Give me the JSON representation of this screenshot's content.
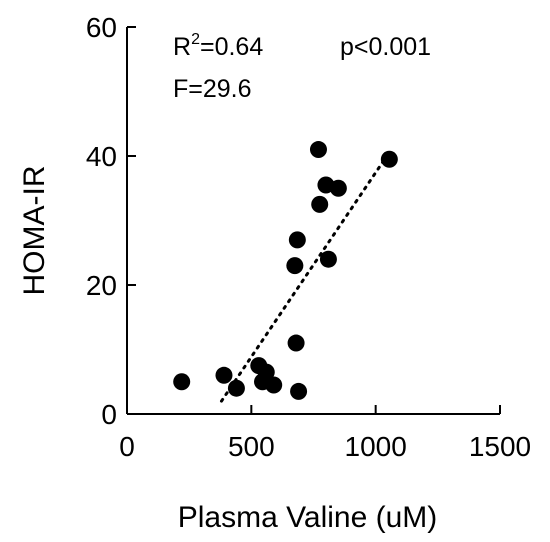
{
  "chart_data": {
    "type": "scatter",
    "title": "",
    "xlabel": "Plasma Valine (uM)",
    "ylabel": "HOMA-IR",
    "xlim": [
      0,
      1500
    ],
    "ylim": [
      0,
      60
    ],
    "xticks": [
      0,
      500,
      1000,
      1500
    ],
    "yticks": [
      0,
      20,
      40,
      60
    ],
    "grid": false,
    "annotations": {
      "r2_base": "R",
      "r2_sup": "2",
      "r2_value": "=0.64",
      "p": "p<0.001",
      "f": "F=29.6"
    },
    "points": [
      {
        "x": 220,
        "y": 5
      },
      {
        "x": 390,
        "y": 6
      },
      {
        "x": 440,
        "y": 4
      },
      {
        "x": 530,
        "y": 7.5
      },
      {
        "x": 545,
        "y": 5
      },
      {
        "x": 560,
        "y": 6.5
      },
      {
        "x": 590,
        "y": 4.5
      },
      {
        "x": 680,
        "y": 11
      },
      {
        "x": 690,
        "y": 3.5
      },
      {
        "x": 675,
        "y": 23
      },
      {
        "x": 685,
        "y": 27
      },
      {
        "x": 810,
        "y": 24
      },
      {
        "x": 775,
        "y": 32.5
      },
      {
        "x": 800,
        "y": 35.5
      },
      {
        "x": 850,
        "y": 35
      },
      {
        "x": 770,
        "y": 41
      },
      {
        "x": 1055,
        "y": 39.5
      }
    ],
    "trendline": {
      "x": [
        380,
        1045
      ],
      "y": [
        2,
        40
      ],
      "style": "dotted"
    }
  }
}
